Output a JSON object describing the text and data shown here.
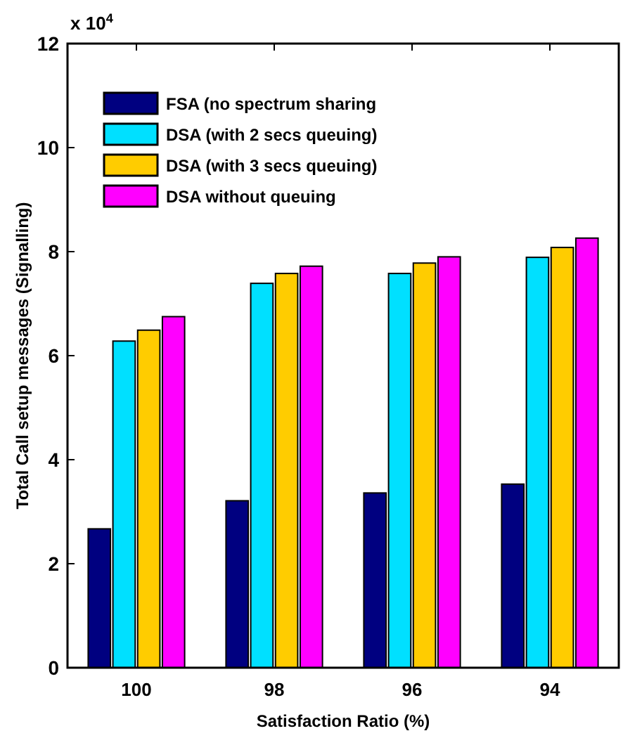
{
  "chart_data": {
    "type": "bar",
    "xlabel": "Satisfaction Ratio (%)",
    "ylabel": "Total Call setup messages (Signalling)",
    "annotations": [
      "x 10$^{4}$"
    ],
    "categories": [
      "100",
      "98",
      "96",
      "94"
    ],
    "series": [
      {
        "name": "FSA (no spectrum sharing",
        "color": "#000080",
        "values": [
          2.67,
          3.21,
          3.36,
          3.53
        ]
      },
      {
        "name": "DSA (with 2 secs queuing)",
        "color": "#00e0ff",
        "values": [
          6.28,
          7.39,
          7.58,
          7.89
        ]
      },
      {
        "name": "DSA (with 3 secs queuing)",
        "color": "#ffcc00",
        "values": [
          6.49,
          7.58,
          7.78,
          8.08
        ]
      },
      {
        "name": "DSA without queuing",
        "color": "#ff00ff",
        "values": [
          6.75,
          7.72,
          7.9,
          8.26
        ]
      }
    ],
    "ylim": [
      0,
      12
    ],
    "yticks": [
      0,
      2,
      4,
      6,
      8,
      10,
      12
    ],
    "grid": false,
    "legend": "top left"
  }
}
